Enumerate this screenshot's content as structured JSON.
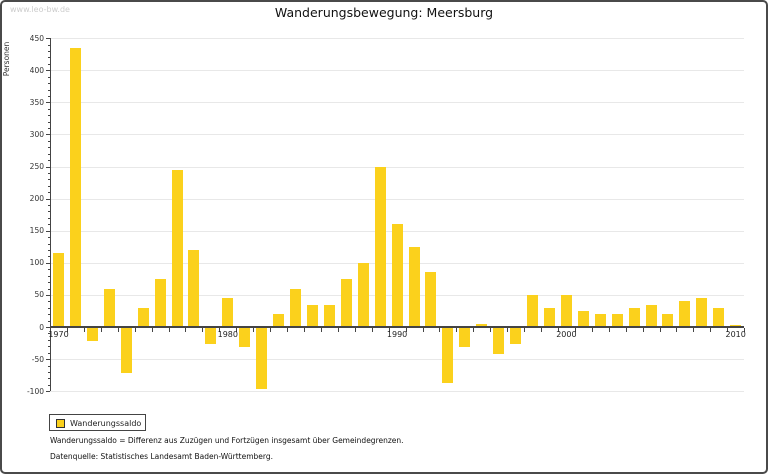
{
  "watermark": "www.leo-bw.de",
  "header": {
    "title": "Wanderungsbewegung: Meersburg"
  },
  "legend": {
    "label": "Wanderungssaldo"
  },
  "notes": {
    "definition": "Wanderungssaldo = Differenz aus Zuzügen und Fortzügen insgesamt über Gemeindegrenzen.",
    "source": "Datenquelle: Statistisches Landesamt Baden-Württemberg."
  },
  "colors": {
    "bar": "#FBD11C",
    "axis": "#444444",
    "grid": "#E8E8E8",
    "tick_label": "#333333",
    "border": "#4A4A4A",
    "watermark": "#CCCCCC"
  },
  "chart_data": {
    "type": "bar",
    "title": "Wanderungsbewegung: Meersburg",
    "xlabel": "",
    "ylabel": "Personen",
    "legend_entries": [
      "Wanderungssaldo"
    ],
    "legend_position": "bottom-left",
    "grid": true,
    "ylim": [
      -100,
      450
    ],
    "ytick_interval": 50,
    "ytick_minor_interval": 10,
    "ytick_labels": [
      "450",
      "400",
      "350",
      "300",
      "250",
      "200",
      "150",
      "100",
      "50",
      "0",
      "-50",
      "-100"
    ],
    "xtick_labeled_years": [
      1970,
      1980,
      1990,
      2000,
      2010
    ],
    "categories": [
      1970,
      1971,
      1972,
      1973,
      1974,
      1975,
      1976,
      1977,
      1978,
      1979,
      1980,
      1981,
      1982,
      1983,
      1984,
      1985,
      1986,
      1987,
      1988,
      1989,
      1990,
      1991,
      1992,
      1993,
      1994,
      1995,
      1996,
      1997,
      1998,
      1999,
      2000,
      2001,
      2002,
      2003,
      2004,
      2005,
      2006,
      2007,
      2008,
      2009,
      2010
    ],
    "series": [
      {
        "name": "Wanderungssaldo",
        "values": [
          115,
          435,
          -20,
          60,
          -70,
          30,
          75,
          245,
          120,
          -25,
          45,
          -30,
          -95,
          20,
          60,
          35,
          35,
          75,
          100,
          250,
          160,
          125,
          85,
          -85,
          -30,
          5,
          -40,
          -25,
          50,
          30,
          50,
          25,
          20,
          20,
          30,
          35,
          20,
          40,
          45,
          30,
          3
        ]
      }
    ]
  }
}
